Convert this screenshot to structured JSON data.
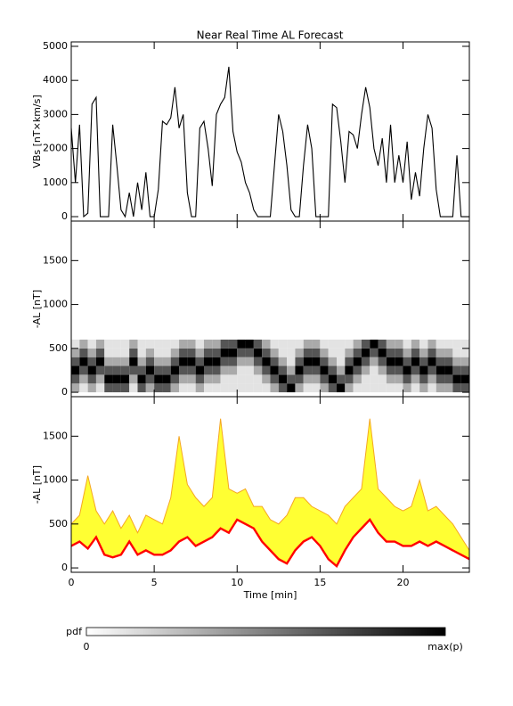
{
  "chart_data": [
    {
      "type": "line",
      "title": "Near Real Time AL Forecast",
      "ylabel": "VBs [nT×km/s]",
      "xlim": [
        0,
        24
      ],
      "xticks": [
        0,
        5,
        10,
        15,
        20
      ],
      "show_xticklabels": false,
      "ylim": [
        -130,
        5130
      ],
      "yticks": [
        0,
        1000,
        2000,
        3000,
        4000,
        5000
      ],
      "color": "#000000",
      "x": [
        0,
        0.25,
        0.5,
        0.75,
        1,
        1.25,
        1.5,
        1.75,
        2,
        2.25,
        2.5,
        2.75,
        3,
        3.25,
        3.5,
        3.75,
        4,
        4.25,
        4.5,
        4.75,
        5,
        5.25,
        5.5,
        5.75,
        6,
        6.25,
        6.5,
        6.75,
        7,
        7.25,
        7.5,
        7.75,
        8,
        8.25,
        8.5,
        8.75,
        9,
        9.25,
        9.5,
        9.75,
        10,
        10.25,
        10.5,
        10.75,
        11,
        11.25,
        11.5,
        11.75,
        12,
        12.25,
        12.5,
        12.75,
        13,
        13.25,
        13.5,
        13.75,
        14,
        14.25,
        14.5,
        14.75,
        15,
        15.25,
        15.5,
        15.75,
        16,
        16.25,
        16.5,
        16.75,
        17,
        17.25,
        17.5,
        17.75,
        18,
        18.25,
        18.5,
        18.75,
        19,
        19.25,
        19.5,
        19.75,
        20,
        20.25,
        20.5,
        20.75,
        21,
        21.25,
        21.5,
        21.75,
        22,
        22.25,
        22.5,
        22.75,
        23,
        23.25,
        23.5,
        23.75,
        24
      ],
      "values": [
        2600,
        1000,
        2700,
        0,
        100,
        3300,
        3500,
        0,
        0,
        0,
        2700,
        1500,
        200,
        0,
        700,
        0,
        1000,
        200,
        1300,
        0,
        0,
        800,
        2800,
        2700,
        2900,
        3800,
        2600,
        3000,
        700,
        0,
        0,
        2600,
        2800,
        2000,
        900,
        3000,
        3300,
        3500,
        4400,
        2500,
        1900,
        1600,
        1000,
        700,
        200,
        0,
        0,
        0,
        0,
        1500,
        3000,
        2500,
        1500,
        200,
        0,
        0,
        1500,
        2700,
        2000,
        0,
        0,
        0,
        0,
        3300,
        3200,
        2200,
        1000,
        2500,
        2400,
        2000,
        3000,
        3800,
        3200,
        2000,
        1500,
        2300,
        1000,
        2700,
        1000,
        1800,
        1000,
        2200,
        500,
        1300,
        600,
        2000,
        3000,
        2600,
        800,
        0,
        0,
        0,
        0,
        1800,
        0,
        0,
        0
      ]
    },
    {
      "type": "heatmap",
      "ylabel": "-AL [nT]",
      "xlim": [
        0,
        24
      ],
      "xticks": [
        0,
        5,
        10,
        15,
        20
      ],
      "show_xticklabels": false,
      "ylim": [
        -50,
        1950
      ],
      "yticks": [
        0,
        500,
        1000,
        1500
      ],
      "x_edges": [
        0,
        0.5,
        1,
        1.5,
        2,
        2.5,
        3,
        3.5,
        4,
        4.5,
        5,
        5.5,
        6,
        6.5,
        7,
        7.5,
        8,
        8.5,
        9,
        9.5,
        10,
        10.5,
        11,
        11.5,
        12,
        12.5,
        13,
        13.5,
        14,
        14.5,
        15,
        15.5,
        16,
        16.5,
        17,
        17.5,
        18,
        18.5,
        19,
        19.5,
        20,
        20.5,
        21,
        21.5,
        22,
        22.5,
        23,
        23.5,
        24
      ],
      "y_edges": [
        0,
        100,
        200,
        300,
        400,
        500,
        600
      ],
      "z": [
        [
          3,
          1,
          3,
          1,
          6,
          6,
          6,
          1,
          6,
          3,
          6,
          6,
          3,
          1,
          1,
          3,
          1,
          1,
          1,
          1,
          1,
          1,
          1,
          1,
          3,
          6,
          9,
          3,
          1,
          1,
          3,
          6,
          9,
          3,
          1,
          1,
          1,
          1,
          1,
          1,
          3,
          1,
          3,
          1,
          3,
          3,
          6,
          6
        ],
        [
          6,
          3,
          6,
          3,
          9,
          9,
          9,
          3,
          9,
          6,
          9,
          9,
          6,
          3,
          3,
          6,
          3,
          3,
          1,
          1,
          1,
          1,
          1,
          3,
          6,
          9,
          6,
          6,
          3,
          3,
          6,
          9,
          6,
          6,
          3,
          1,
          1,
          1,
          3,
          3,
          6,
          3,
          6,
          3,
          6,
          6,
          9,
          9
        ],
        [
          9,
          6,
          9,
          6,
          6,
          6,
          6,
          6,
          6,
          9,
          6,
          6,
          9,
          6,
          6,
          9,
          6,
          6,
          3,
          3,
          1,
          1,
          3,
          6,
          9,
          6,
          3,
          9,
          6,
          6,
          9,
          6,
          3,
          9,
          6,
          3,
          1,
          3,
          6,
          6,
          9,
          6,
          9,
          6,
          9,
          9,
          6,
          6
        ],
        [
          6,
          9,
          6,
          9,
          3,
          3,
          3,
          9,
          3,
          6,
          3,
          3,
          6,
          9,
          9,
          6,
          9,
          9,
          6,
          6,
          3,
          3,
          6,
          9,
          6,
          3,
          1,
          6,
          9,
          9,
          6,
          3,
          1,
          6,
          9,
          6,
          3,
          6,
          9,
          9,
          6,
          9,
          6,
          9,
          6,
          6,
          3,
          3
        ],
        [
          3,
          6,
          3,
          6,
          1,
          1,
          1,
          6,
          1,
          3,
          1,
          1,
          3,
          6,
          6,
          3,
          6,
          6,
          9,
          9,
          6,
          6,
          9,
          6,
          3,
          1,
          1,
          3,
          6,
          6,
          3,
          1,
          1,
          3,
          6,
          9,
          6,
          9,
          6,
          6,
          3,
          6,
          3,
          6,
          3,
          3,
          1,
          1
        ],
        [
          1,
          3,
          1,
          3,
          1,
          1,
          1,
          3,
          1,
          1,
          1,
          1,
          1,
          3,
          3,
          1,
          3,
          3,
          6,
          6,
          9,
          9,
          6,
          3,
          1,
          1,
          1,
          1,
          3,
          3,
          1,
          1,
          1,
          1,
          3,
          6,
          9,
          6,
          3,
          3,
          1,
          3,
          1,
          3,
          1,
          1,
          1,
          1
        ]
      ],
      "colorbar": {
        "label": "pdf",
        "min_label": 0,
        "max_label": "max(p)"
      }
    },
    {
      "type": "area",
      "ylabel": "-AL [nT]",
      "xlabel": "Time [min]",
      "xlim": [
        0,
        24
      ],
      "xticks": [
        0,
        5,
        10,
        15,
        20
      ],
      "show_xticklabels": true,
      "ylim": [
        -50,
        1950
      ],
      "yticks": [
        0,
        500,
        1000,
        1500
      ],
      "fill": "#ffff33",
      "x": [
        0,
        0.5,
        1,
        1.5,
        2,
        2.5,
        3,
        3.5,
        4,
        4.5,
        5,
        5.5,
        6,
        6.5,
        7,
        7.5,
        8,
        8.5,
        9,
        9.5,
        10,
        10.5,
        11,
        11.5,
        12,
        12.5,
        13,
        13.5,
        14,
        14.5,
        15,
        15.5,
        16,
        16.5,
        17,
        17.5,
        18,
        18.5,
        19,
        19.5,
        20,
        20.5,
        21,
        21.5,
        22,
        22.5,
        23,
        23.5,
        24
      ],
      "series": [
        {
          "color": "#ff0000",
          "values": [
            250,
            300,
            220,
            350,
            150,
            120,
            150,
            300,
            150,
            200,
            150,
            150,
            200,
            300,
            350,
            250,
            300,
            350,
            450,
            400,
            550,
            500,
            450,
            300,
            200,
            100,
            50,
            200,
            300,
            350,
            250,
            100,
            20,
            200,
            350,
            450,
            550,
            400,
            300,
            300,
            250,
            250,
            300,
            250,
            300,
            250,
            200,
            150,
            100
          ]
        },
        {
          "color": "#f5a623",
          "values": [
            500,
            600,
            1050,
            650,
            500,
            650,
            450,
            600,
            400,
            600,
            550,
            500,
            800,
            1500,
            950,
            800,
            700,
            800,
            1700,
            900,
            850,
            900,
            700,
            700,
            550,
            500,
            600,
            800,
            800,
            700,
            650,
            600,
            500,
            700,
            800,
            900,
            1700,
            900,
            800,
            700,
            650,
            700,
            1000,
            650,
            700,
            600,
            500,
            350,
            200
          ]
        }
      ]
    }
  ]
}
